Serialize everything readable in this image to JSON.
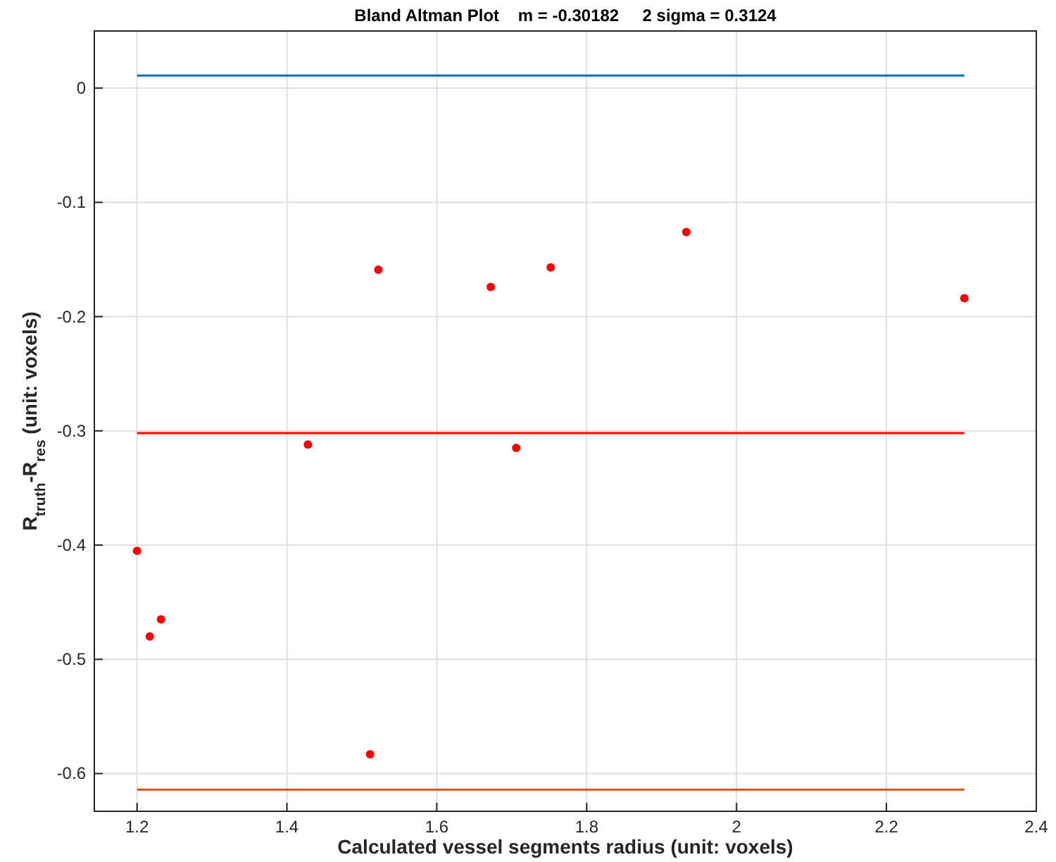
{
  "chart_data": {
    "type": "scatter",
    "title": "Bland Altman Plot    m = -0.30182     2 sigma = 0.3124",
    "xlabel": "Calculated vessel segments radius (unit: voxels)",
    "ylabel": "R$_{truth}$-R$_{res}$    (unit: voxels)",
    "xlim": [
      1.143,
      2.4
    ],
    "xticks": [
      1.2,
      1.4,
      1.6,
      1.8,
      2,
      2.2,
      2.4
    ],
    "ylim": [
      -0.633,
      0.05
    ],
    "yticks": [
      -0.6,
      -0.5,
      -0.4,
      -0.3,
      -0.2,
      -0.1,
      0
    ],
    "grid": true,
    "series": [
      {
        "type": "line",
        "color": "#0072bd",
        "x": [
          1.2,
          2.304
        ],
        "values": [
          0.011,
          0.011
        ]
      },
      {
        "type": "line",
        "color": "#ff0000",
        "x": [
          1.2,
          2.304
        ],
        "values": [
          -0.302,
          -0.302
        ]
      },
      {
        "type": "line",
        "color": "#d95319",
        "x": [
          1.2,
          2.304
        ],
        "values": [
          -0.614,
          -0.614
        ]
      },
      {
        "marker": "circle",
        "color": "#ff0000",
        "x": [
          1.2,
          1.217,
          1.232,
          1.428,
          1.511,
          1.522,
          1.672,
          1.706,
          1.752,
          1.933,
          2.304
        ],
        "values": [
          -0.405,
          -0.48,
          -0.465,
          -0.312,
          -0.583,
          -0.159,
          -0.174,
          -0.315,
          -0.157,
          -0.126,
          -0.184
        ]
      }
    ]
  }
}
